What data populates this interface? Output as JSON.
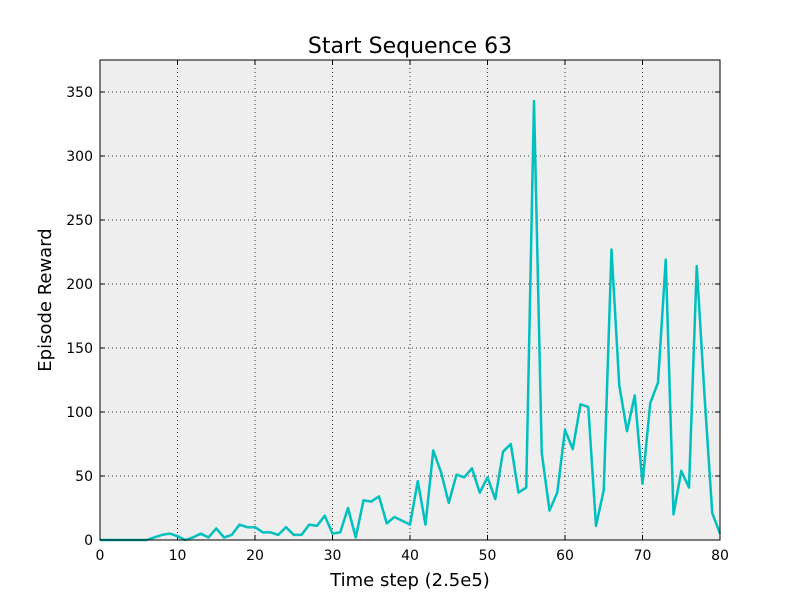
{
  "chart_data": {
    "type": "line",
    "title": "Start Sequence 63",
    "xlabel": "Time step (2.5e5)",
    "ylabel": "Episode Reward",
    "xlim": [
      0,
      80
    ],
    "ylim": [
      0,
      375
    ],
    "grid": true,
    "line_color": "#00BFBF",
    "plot_background": "#EEEEEE",
    "x_ticks": [
      0,
      10,
      20,
      30,
      40,
      50,
      60,
      70,
      80
    ],
    "y_ticks": [
      0,
      50,
      100,
      150,
      200,
      250,
      300,
      350
    ],
    "x_tick_labels": [
      "0",
      "10",
      "20",
      "30",
      "40",
      "50",
      "60",
      "70",
      "80"
    ],
    "y_tick_labels": [
      "0",
      "50",
      "100",
      "150",
      "200",
      "250",
      "300",
      "350"
    ],
    "series": [
      {
        "x": [
          0,
          1,
          2,
          3,
          4,
          5,
          6,
          7,
          8,
          9,
          10,
          11,
          12,
          13,
          14,
          15,
          16,
          17,
          18,
          19,
          20,
          21,
          22,
          23,
          24,
          25,
          26,
          27,
          28,
          29,
          30,
          31,
          32,
          33,
          34,
          35,
          36,
          37,
          38,
          39,
          40,
          41,
          42,
          43,
          44,
          45,
          46,
          47,
          48,
          49,
          50,
          51,
          52,
          53,
          54,
          55,
          56,
          57,
          58,
          59,
          60,
          61,
          62,
          63,
          64,
          65,
          66,
          67,
          68,
          69,
          70,
          71,
          72,
          73,
          74,
          75,
          76,
          77,
          78,
          79,
          80
        ],
        "y": [
          0,
          0,
          0,
          0,
          0,
          0,
          0,
          2,
          4,
          5,
          3,
          0,
          2,
          5,
          2,
          9,
          2,
          4,
          12,
          10,
          10,
          6,
          6,
          4,
          10,
          4,
          4,
          12,
          11,
          19,
          5,
          6,
          25,
          2,
          31,
          30,
          34,
          13,
          18,
          15,
          12,
          46,
          12,
          70,
          53,
          29,
          51,
          49,
          56,
          37,
          49,
          32,
          69,
          75,
          37,
          41,
          343,
          68,
          23,
          37,
          86,
          71,
          106,
          104,
          11,
          39,
          227,
          121,
          85,
          113,
          44,
          107,
          123,
          219,
          20,
          54,
          41,
          214,
          113,
          21,
          5
        ]
      }
    ]
  }
}
